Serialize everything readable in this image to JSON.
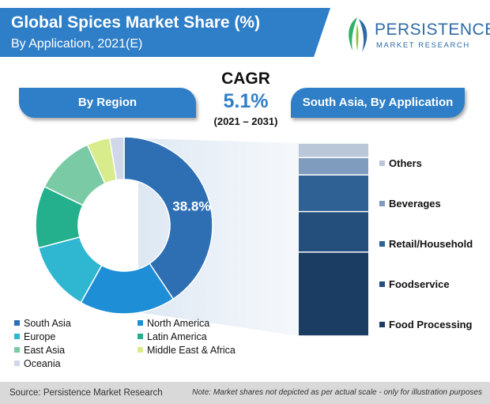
{
  "title": "Global Spices Market Share (%)",
  "subtitle": "By Application, 2021(E)",
  "logo": {
    "name": "PERSISTENCE",
    "sub": "MARKET RESEARCH"
  },
  "cagr": {
    "label": "CAGR",
    "value": "5.1%",
    "period": "(2021 – 2031)"
  },
  "region_pill": "By Region",
  "application_pill": "South Asia, By Application",
  "chart_data": [
    {
      "type": "pie",
      "title": "By Region",
      "donut": true,
      "categories": [
        "South Asia",
        "North America",
        "Europe",
        "Latin America",
        "East Asia",
        "Middle East & Africa",
        "Oceania"
      ],
      "values": [
        38.8,
        16.7,
        12.2,
        10.8,
        10.5,
        4.0,
        2.5
      ],
      "data_label": "38.8%",
      "colors": [
        "#2e6fb4",
        "#1e8ed6",
        "#2fb7d1",
        "#24b08c",
        "#7acaa5",
        "#d8ec8c",
        "#d1d7e8"
      ],
      "legend_position": "bottom"
    },
    {
      "type": "bar",
      "stacked": true,
      "title": "South Asia, By Application",
      "categories": [
        "Food Processing",
        "Foodservice",
        "Retail/Household",
        "Beverages",
        "Others"
      ],
      "values": [
        43.5,
        21.0,
        19.0,
        9.0,
        7.5
      ],
      "colors": [
        "#1b3d63",
        "#244e7c",
        "#2f6194",
        "#7f9bbd",
        "#b9c7d8"
      ],
      "ylim": [
        0,
        100
      ],
      "legend_position": "right"
    }
  ],
  "footer": {
    "source": "Source: Persistence Market Research",
    "note": "Note: Market shares not depicted as per actual scale - only for illustration purposes"
  }
}
